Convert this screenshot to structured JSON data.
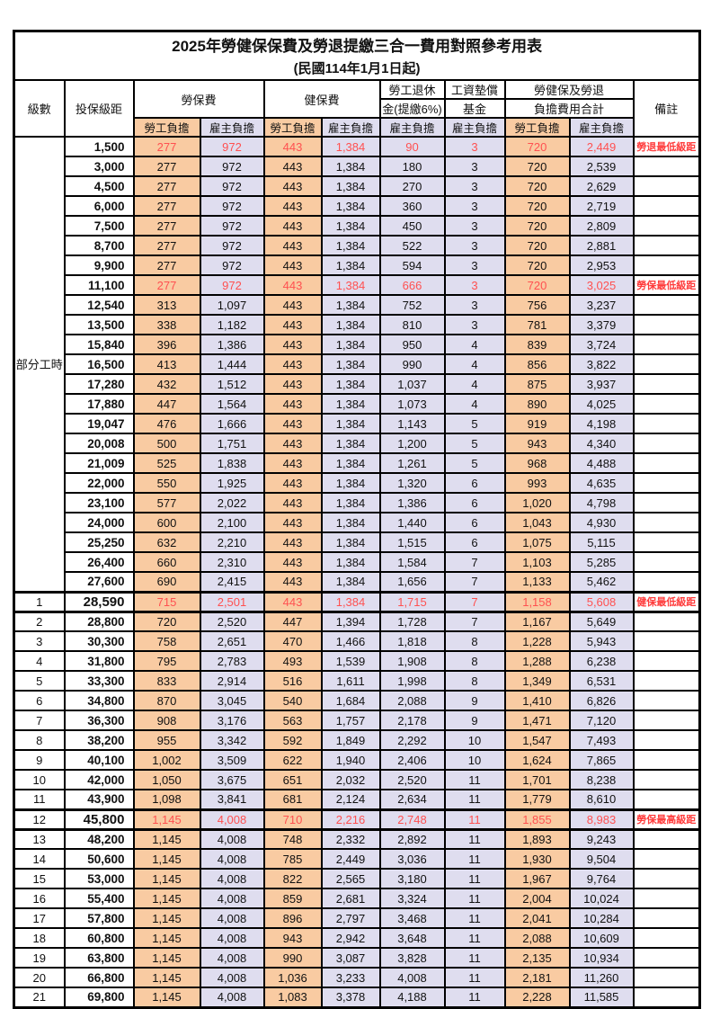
{
  "title": "2025年勞健保保費及勞退提繳三合一費用對照參考用表",
  "subtitle": "(民國114年1月1日起)",
  "header": {
    "level": "級數",
    "bracket": "投保級距",
    "labor_fee": "勞保費",
    "health_fee": "健保費",
    "pension_l1": "勞工退休",
    "pension_l2": "金(提繳6%)",
    "wage_fund_l1": "工資墊償",
    "wage_fund_l2": "基金",
    "total_l1": "勞健保及勞退",
    "total_l2": "負擔費用合計",
    "note": "備註",
    "employee": "勞工負擔",
    "employer": "雇主負擔"
  },
  "colors": {
    "employee_bg": "#F9CBA2",
    "employer_bg": "#DFDDEF",
    "highlight_red": "#FF5050",
    "note_red": "#FF3B3B",
    "border": "#000000"
  },
  "table": {
    "rows": [
      {
        "group": "部分工時",
        "span": 23,
        "bracket": "1,500",
        "v": [
          "277",
          "972",
          "443",
          "1,384",
          "90",
          "3",
          "720",
          "2,449"
        ],
        "note": "勞退最低級距",
        "red": true
      },
      {
        "bracket": "3,000",
        "v": [
          "277",
          "972",
          "443",
          "1,384",
          "180",
          "3",
          "720",
          "2,539"
        ],
        "note": ""
      },
      {
        "bracket": "4,500",
        "v": [
          "277",
          "972",
          "443",
          "1,384",
          "270",
          "3",
          "720",
          "2,629"
        ],
        "note": ""
      },
      {
        "bracket": "6,000",
        "v": [
          "277",
          "972",
          "443",
          "1,384",
          "360",
          "3",
          "720",
          "2,719"
        ],
        "note": ""
      },
      {
        "bracket": "7,500",
        "v": [
          "277",
          "972",
          "443",
          "1,384",
          "450",
          "3",
          "720",
          "2,809"
        ],
        "note": ""
      },
      {
        "bracket": "8,700",
        "v": [
          "277",
          "972",
          "443",
          "1,384",
          "522",
          "3",
          "720",
          "2,881"
        ],
        "note": ""
      },
      {
        "bracket": "9,900",
        "v": [
          "277",
          "972",
          "443",
          "1,384",
          "594",
          "3",
          "720",
          "2,953"
        ],
        "note": ""
      },
      {
        "bracket": "11,100",
        "v": [
          "277",
          "972",
          "443",
          "1,384",
          "666",
          "3",
          "720",
          "3,025"
        ],
        "note": "勞保最低級距",
        "red": true
      },
      {
        "bracket": "12,540",
        "v": [
          "313",
          "1,097",
          "443",
          "1,384",
          "752",
          "3",
          "756",
          "3,237"
        ],
        "note": ""
      },
      {
        "bracket": "13,500",
        "v": [
          "338",
          "1,182",
          "443",
          "1,384",
          "810",
          "3",
          "781",
          "3,379"
        ],
        "note": ""
      },
      {
        "bracket": "15,840",
        "v": [
          "396",
          "1,386",
          "443",
          "1,384",
          "950",
          "4",
          "839",
          "3,724"
        ],
        "note": ""
      },
      {
        "bracket": "16,500",
        "v": [
          "413",
          "1,444",
          "443",
          "1,384",
          "990",
          "4",
          "856",
          "3,822"
        ],
        "note": ""
      },
      {
        "bracket": "17,280",
        "v": [
          "432",
          "1,512",
          "443",
          "1,384",
          "1,037",
          "4",
          "875",
          "3,937"
        ],
        "note": ""
      },
      {
        "bracket": "17,880",
        "v": [
          "447",
          "1,564",
          "443",
          "1,384",
          "1,073",
          "4",
          "890",
          "4,025"
        ],
        "note": ""
      },
      {
        "bracket": "19,047",
        "v": [
          "476",
          "1,666",
          "443",
          "1,384",
          "1,143",
          "5",
          "919",
          "4,198"
        ],
        "note": ""
      },
      {
        "bracket": "20,008",
        "v": [
          "500",
          "1,751",
          "443",
          "1,384",
          "1,200",
          "5",
          "943",
          "4,340"
        ],
        "note": ""
      },
      {
        "bracket": "21,009",
        "v": [
          "525",
          "1,838",
          "443",
          "1,384",
          "1,261",
          "5",
          "968",
          "4,488"
        ],
        "note": ""
      },
      {
        "bracket": "22,000",
        "v": [
          "550",
          "1,925",
          "443",
          "1,384",
          "1,320",
          "6",
          "993",
          "4,635"
        ],
        "note": ""
      },
      {
        "bracket": "23,100",
        "v": [
          "577",
          "2,022",
          "443",
          "1,384",
          "1,386",
          "6",
          "1,020",
          "4,798"
        ],
        "note": ""
      },
      {
        "bracket": "24,000",
        "v": [
          "600",
          "2,100",
          "443",
          "1,384",
          "1,440",
          "6",
          "1,043",
          "4,930"
        ],
        "note": ""
      },
      {
        "bracket": "25,250",
        "v": [
          "632",
          "2,210",
          "443",
          "1,384",
          "1,515",
          "6",
          "1,075",
          "5,115"
        ],
        "note": ""
      },
      {
        "bracket": "26,400",
        "v": [
          "660",
          "2,310",
          "443",
          "1,384",
          "1,584",
          "7",
          "1,103",
          "5,285"
        ],
        "note": ""
      },
      {
        "bracket": "27,600",
        "v": [
          "690",
          "2,415",
          "443",
          "1,384",
          "1,656",
          "7",
          "1,133",
          "5,462"
        ],
        "note": ""
      },
      {
        "level": "1",
        "bracket": "28,590",
        "v": [
          "715",
          "2,501",
          "443",
          "1,384",
          "1,715",
          "7",
          "1,158",
          "5,608"
        ],
        "note": "健保最低級距",
        "red": true,
        "thick": true
      },
      {
        "level": "2",
        "bracket": "28,800",
        "v": [
          "720",
          "2,520",
          "447",
          "1,394",
          "1,728",
          "7",
          "1,167",
          "5,649"
        ],
        "note": ""
      },
      {
        "level": "3",
        "bracket": "30,300",
        "v": [
          "758",
          "2,651",
          "470",
          "1,466",
          "1,818",
          "8",
          "1,228",
          "5,943"
        ],
        "note": ""
      },
      {
        "level": "4",
        "bracket": "31,800",
        "v": [
          "795",
          "2,783",
          "493",
          "1,539",
          "1,908",
          "8",
          "1,288",
          "6,238"
        ],
        "note": ""
      },
      {
        "level": "5",
        "bracket": "33,300",
        "v": [
          "833",
          "2,914",
          "516",
          "1,611",
          "1,998",
          "8",
          "1,349",
          "6,531"
        ],
        "note": ""
      },
      {
        "level": "6",
        "bracket": "34,800",
        "v": [
          "870",
          "3,045",
          "540",
          "1,684",
          "2,088",
          "9",
          "1,410",
          "6,826"
        ],
        "note": ""
      },
      {
        "level": "7",
        "bracket": "36,300",
        "v": [
          "908",
          "3,176",
          "563",
          "1,757",
          "2,178",
          "9",
          "1,471",
          "7,120"
        ],
        "note": ""
      },
      {
        "level": "8",
        "bracket": "38,200",
        "v": [
          "955",
          "3,342",
          "592",
          "1,849",
          "2,292",
          "10",
          "1,547",
          "7,493"
        ],
        "note": ""
      },
      {
        "level": "9",
        "bracket": "40,100",
        "v": [
          "1,002",
          "3,509",
          "622",
          "1,940",
          "2,406",
          "10",
          "1,624",
          "7,865"
        ],
        "note": ""
      },
      {
        "level": "10",
        "bracket": "42,000",
        "v": [
          "1,050",
          "3,675",
          "651",
          "2,032",
          "2,520",
          "11",
          "1,701",
          "8,238"
        ],
        "note": ""
      },
      {
        "level": "11",
        "bracket": "43,900",
        "v": [
          "1,098",
          "3,841",
          "681",
          "2,124",
          "2,634",
          "11",
          "1,779",
          "8,610"
        ],
        "note": ""
      },
      {
        "level": "12",
        "bracket": "45,800",
        "v": [
          "1,145",
          "4,008",
          "710",
          "2,216",
          "2,748",
          "11",
          "1,855",
          "8,983"
        ],
        "note": "勞保最高級距",
        "red": true,
        "thick": true
      },
      {
        "level": "13",
        "bracket": "48,200",
        "v": [
          "1,145",
          "4,008",
          "748",
          "2,332",
          "2,892",
          "11",
          "1,893",
          "9,243"
        ],
        "note": ""
      },
      {
        "level": "14",
        "bracket": "50,600",
        "v": [
          "1,145",
          "4,008",
          "785",
          "2,449",
          "3,036",
          "11",
          "1,930",
          "9,504"
        ],
        "note": ""
      },
      {
        "level": "15",
        "bracket": "53,000",
        "v": [
          "1,145",
          "4,008",
          "822",
          "2,565",
          "3,180",
          "11",
          "1,967",
          "9,764"
        ],
        "note": ""
      },
      {
        "level": "16",
        "bracket": "55,400",
        "v": [
          "1,145",
          "4,008",
          "859",
          "2,681",
          "3,324",
          "11",
          "2,004",
          "10,024"
        ],
        "note": ""
      },
      {
        "level": "17",
        "bracket": "57,800",
        "v": [
          "1,145",
          "4,008",
          "896",
          "2,797",
          "3,468",
          "11",
          "2,041",
          "10,284"
        ],
        "note": ""
      },
      {
        "level": "18",
        "bracket": "60,800",
        "v": [
          "1,145",
          "4,008",
          "943",
          "2,942",
          "3,648",
          "11",
          "2,088",
          "10,609"
        ],
        "note": ""
      },
      {
        "level": "19",
        "bracket": "63,800",
        "v": [
          "1,145",
          "4,008",
          "990",
          "3,087",
          "3,828",
          "11",
          "2,135",
          "10,934"
        ],
        "note": ""
      },
      {
        "level": "20",
        "bracket": "66,800",
        "v": [
          "1,145",
          "4,008",
          "1,036",
          "3,233",
          "4,008",
          "11",
          "2,181",
          "11,260"
        ],
        "note": ""
      },
      {
        "level": "21",
        "bracket": "69,800",
        "v": [
          "1,145",
          "4,008",
          "1,083",
          "3,378",
          "4,188",
          "11",
          "2,228",
          "11,585"
        ],
        "note": ""
      }
    ]
  }
}
